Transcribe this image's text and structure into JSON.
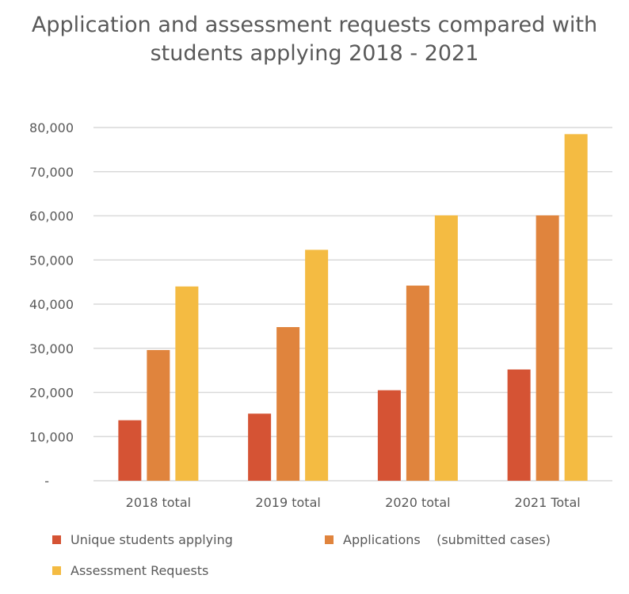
{
  "chart_data": {
    "type": "bar",
    "title": "Application and assessment requests compared with students applying 2018 - 2021",
    "categories": [
      "2018 total",
      "2019 total",
      "2020 total",
      "2021 Total"
    ],
    "series": [
      {
        "name": "Unique students applying",
        "color": "#D55334",
        "values": [
          13700,
          15200,
          20500,
          25200
        ]
      },
      {
        "name": "Applications    (submitted cases)",
        "color": "#E0843D",
        "values": [
          29600,
          34800,
          44200,
          60100
        ]
      },
      {
        "name": "Assessment Requests",
        "color": "#F4BB42",
        "values": [
          44000,
          52300,
          60100,
          78500
        ]
      }
    ],
    "ylim": [
      0,
      80000
    ],
    "yticks": [
      0,
      10000,
      20000,
      30000,
      40000,
      50000,
      60000,
      70000,
      80000
    ],
    "ytick_labels": [
      "-",
      "10,000",
      "20,000",
      "30,000",
      "40,000",
      "50,000",
      "60,000",
      "70,000",
      "80,000"
    ],
    "grid": true,
    "legend": "bottom"
  }
}
